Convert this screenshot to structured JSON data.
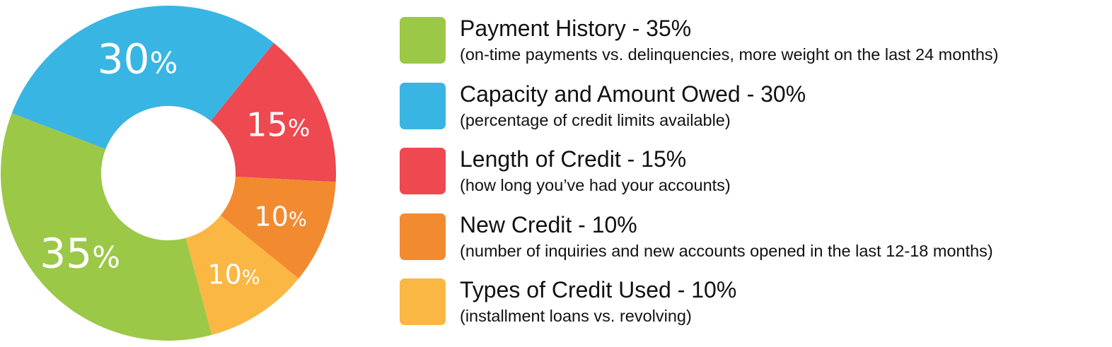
{
  "chart_data": {
    "type": "pie",
    "donut": true,
    "title": "",
    "slices": [
      {
        "label": "Length of Credit",
        "value": 15,
        "display": "15",
        "color": "#ee4850"
      },
      {
        "label": "New Credit",
        "value": 10,
        "display": "10",
        "color": "#f28a30"
      },
      {
        "label": "Types of Credit Used",
        "value": 10,
        "display": "10",
        "color": "#fbb744"
      },
      {
        "label": "Payment History",
        "value": 35,
        "display": "35",
        "color": "#9bc847"
      },
      {
        "label": "Capacity and Amount Owed",
        "value": 30,
        "display": "30",
        "color": "#38b5e3"
      }
    ],
    "percent_sign": "%",
    "legend_placement": "right"
  },
  "legend": [
    {
      "title": "Payment History - 35%",
      "subtitle": "(on-time payments vs. delinquencies, more weight on the last 24 months)",
      "color": "#9bc847"
    },
    {
      "title": "Capacity and Amount Owed - 30%",
      "subtitle": "(percentage of credit limits available)",
      "color": "#38b5e3"
    },
    {
      "title": "Length of Credit - 15%",
      "subtitle": "(how long you’ve had your accounts)",
      "color": "#ee4850"
    },
    {
      "title": "New Credit - 10%",
      "subtitle": "(number of inquiries and new accounts opened in the last 12-18 months)",
      "color": "#f28a30"
    },
    {
      "title": "Types of Credit Used - 10%",
      "subtitle": "(installment loans vs. revolving)",
      "color": "#fbb744"
    }
  ]
}
